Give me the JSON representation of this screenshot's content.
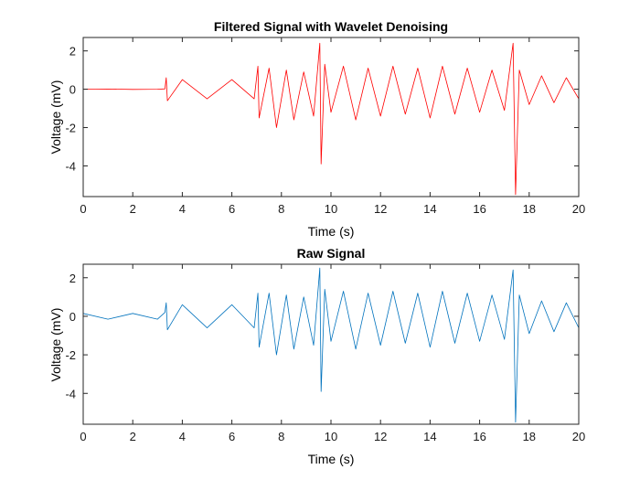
{
  "chart_data": [
    {
      "type": "line",
      "title": "Filtered Signal with Wavelet Denoising",
      "xlabel": "Time (s)",
      "ylabel": "Voltage (mV)",
      "xlim": [
        0,
        20
      ],
      "ylim": [
        -5.6,
        2.7
      ],
      "xticks": [
        0,
        2,
        4,
        6,
        8,
        10,
        12,
        14,
        16,
        18,
        20
      ],
      "yticks": [
        2,
        0,
        -2,
        -4
      ],
      "grid": false,
      "series": [
        {
          "color": "#ff0000",
          "points": [
            [
              0,
              0
            ],
            [
              1,
              0.01
            ],
            [
              2,
              -0.01
            ],
            [
              3,
              0
            ],
            [
              3.3,
              0.02
            ],
            [
              3.35,
              0.6
            ],
            [
              3.4,
              -0.6
            ],
            [
              4,
              0.5
            ],
            [
              5,
              -0.5
            ],
            [
              6,
              0.5
            ],
            [
              6.9,
              -0.5
            ],
            [
              7.05,
              1.2
            ],
            [
              7.1,
              -1.5
            ],
            [
              7.5,
              1.1
            ],
            [
              7.8,
              -2.0
            ],
            [
              8.2,
              1.0
            ],
            [
              8.5,
              -1.6
            ],
            [
              8.9,
              0.9
            ],
            [
              9.3,
              -1.4
            ],
            [
              9.55,
              2.4
            ],
            [
              9.6,
              -3.9
            ],
            [
              9.75,
              1.3
            ],
            [
              10,
              -1.2
            ],
            [
              10.5,
              1.2
            ],
            [
              11,
              -1.6
            ],
            [
              11.5,
              1.1
            ],
            [
              12,
              -1.4
            ],
            [
              12.5,
              1.2
            ],
            [
              13,
              -1.3
            ],
            [
              13.5,
              1.1
            ],
            [
              14,
              -1.5
            ],
            [
              14.5,
              1.2
            ],
            [
              15,
              -1.3
            ],
            [
              15.5,
              1.1
            ],
            [
              16,
              -1.2
            ],
            [
              16.5,
              1.0
            ],
            [
              17,
              -1.1
            ],
            [
              17.35,
              2.4
            ],
            [
              17.45,
              -5.5
            ],
            [
              17.6,
              1.0
            ],
            [
              18,
              -0.8
            ],
            [
              18.5,
              0.7
            ],
            [
              19,
              -0.7
            ],
            [
              19.5,
              0.6
            ],
            [
              20,
              -0.5
            ]
          ]
        }
      ]
    },
    {
      "type": "line",
      "title": "Raw Signal",
      "xlabel": "Time (s)",
      "ylabel": "Voltage (mV)",
      "xlim": [
        0,
        20
      ],
      "ylim": [
        -5.6,
        2.7
      ],
      "xticks": [
        0,
        2,
        4,
        6,
        8,
        10,
        12,
        14,
        16,
        18,
        20
      ],
      "yticks": [
        2,
        0,
        -2,
        -4
      ],
      "grid": false,
      "series": [
        {
          "color": "#0072bd",
          "points": [
            [
              0,
              0.15
            ],
            [
              1,
              -0.15
            ],
            [
              2,
              0.15
            ],
            [
              3,
              -0.15
            ],
            [
              3.3,
              0.2
            ],
            [
              3.35,
              0.7
            ],
            [
              3.4,
              -0.7
            ],
            [
              4,
              0.6
            ],
            [
              5,
              -0.6
            ],
            [
              6,
              0.6
            ],
            [
              6.9,
              -0.6
            ],
            [
              7.05,
              1.2
            ],
            [
              7.1,
              -1.6
            ],
            [
              7.5,
              1.2
            ],
            [
              7.8,
              -2.0
            ],
            [
              8.2,
              1.1
            ],
            [
              8.5,
              -1.7
            ],
            [
              8.9,
              1.0
            ],
            [
              9.3,
              -1.5
            ],
            [
              9.55,
              2.5
            ],
            [
              9.6,
              -3.9
            ],
            [
              9.75,
              1.4
            ],
            [
              10,
              -1.3
            ],
            [
              10.5,
              1.3
            ],
            [
              11,
              -1.7
            ],
            [
              11.5,
              1.2
            ],
            [
              12,
              -1.5
            ],
            [
              12.5,
              1.3
            ],
            [
              13,
              -1.4
            ],
            [
              13.5,
              1.2
            ],
            [
              14,
              -1.6
            ],
            [
              14.5,
              1.3
            ],
            [
              15,
              -1.4
            ],
            [
              15.5,
              1.2
            ],
            [
              16,
              -1.3
            ],
            [
              16.5,
              1.1
            ],
            [
              17,
              -1.2
            ],
            [
              17.35,
              2.4
            ],
            [
              17.45,
              -5.5
            ],
            [
              17.6,
              1.1
            ],
            [
              18,
              -0.9
            ],
            [
              18.5,
              0.8
            ],
            [
              19,
              -0.8
            ],
            [
              19.5,
              0.7
            ],
            [
              20,
              -0.6
            ]
          ]
        }
      ]
    }
  ]
}
